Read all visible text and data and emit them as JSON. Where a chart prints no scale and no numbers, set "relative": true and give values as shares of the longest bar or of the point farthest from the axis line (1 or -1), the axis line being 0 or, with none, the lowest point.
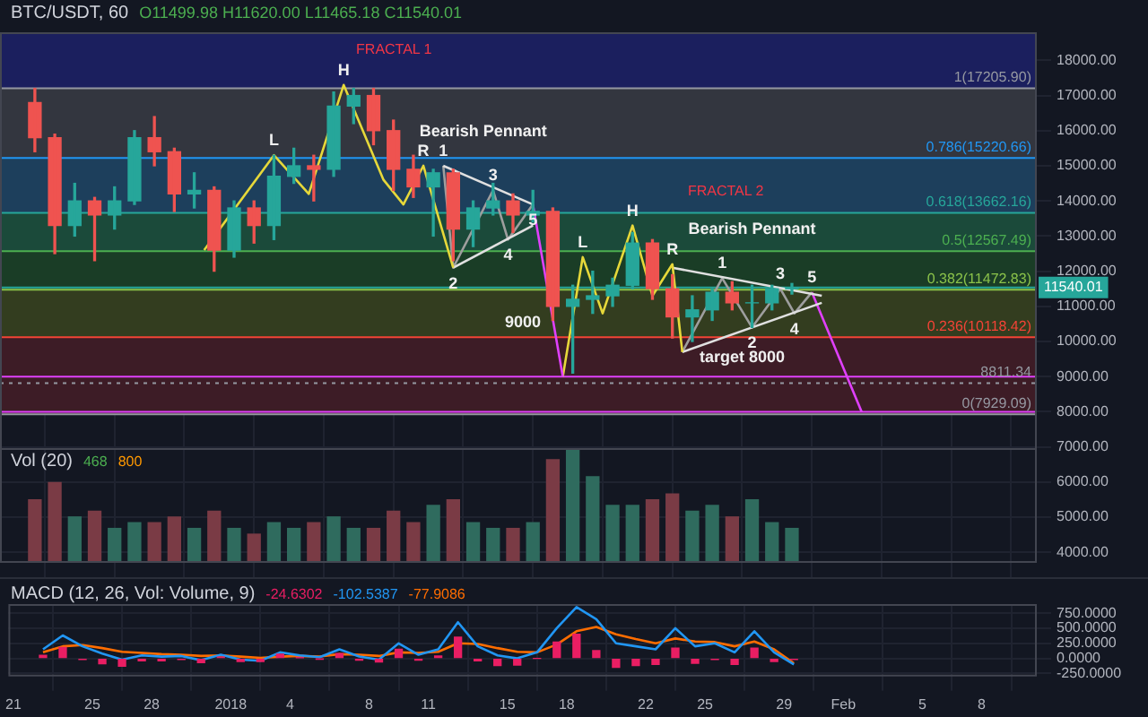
{
  "chart_data": [
    {
      "type": "candlestick",
      "title": "BTC/USDT, 60",
      "subtitle": "O11499.98 H11620.00 L11465.18 C11540.01",
      "x": [
        "2017-12-22T12:00",
        "2017-12-23T12:00",
        "2017-12-24T12:00",
        "2017-12-25T12:00",
        "2017-12-26T12:00",
        "2017-12-27T12:00",
        "2017-12-28T12:00",
        "2017-12-29T12:00",
        "2017-12-30T12:00",
        "2017-12-31T12:00",
        "2018-01-01T12:00",
        "2018-01-02T12:00",
        "2018-01-03T12:00",
        "2018-01-04T12:00",
        "2018-01-05T12:00",
        "2018-01-06T12:00",
        "2018-01-07T12:00",
        "2018-01-08T12:00",
        "2018-01-09T12:00",
        "2018-01-10T12:00",
        "2018-01-11T12:00",
        "2018-01-12T12:00",
        "2018-01-13T12:00",
        "2018-01-14T12:00",
        "2018-01-15T12:00",
        "2018-01-16T12:00",
        "2018-01-17T12:00",
        "2018-01-18T12:00",
        "2018-01-19T12:00",
        "2018-01-20T12:00",
        "2018-01-21T12:00",
        "2018-01-22T12:00",
        "2018-01-23T12:00",
        "2018-01-24T12:00",
        "2018-01-25T12:00",
        "2018-01-26T12:00",
        "2018-01-27T12:00",
        "2018-01-28T12:00",
        "2018-01-29T12:00"
      ],
      "ohlc": [
        [
          16800,
          17200,
          15400,
          15800
        ],
        [
          15800,
          15900,
          12500,
          13300
        ],
        [
          13300,
          14500,
          13000,
          14000
        ],
        [
          14000,
          14100,
          12300,
          13600
        ],
        [
          13600,
          14400,
          13200,
          14000
        ],
        [
          14000,
          16000,
          13900,
          15800
        ],
        [
          15800,
          16400,
          15000,
          15400
        ],
        [
          15400,
          15500,
          13700,
          14200
        ],
        [
          14200,
          14800,
          13800,
          14300
        ],
        [
          14300,
          14400,
          12000,
          12600
        ],
        [
          12600,
          14000,
          12400,
          13800
        ],
        [
          13800,
          14000,
          12800,
          13300
        ],
        [
          13300,
          15300,
          12900,
          14700
        ],
        [
          14700,
          15500,
          14500,
          15000
        ],
        [
          15000,
          15300,
          14000,
          14900
        ],
        [
          14900,
          17100,
          14700,
          16700
        ],
        [
          16700,
          17200,
          16200,
          17000
        ],
        [
          17000,
          17200,
          15600,
          16000
        ],
        [
          16000,
          16300,
          14300,
          14900
        ],
        [
          14900,
          15300,
          14100,
          14400
        ],
        [
          14400,
          14900,
          13000,
          14800
        ],
        [
          14800,
          14900,
          12300,
          13200
        ],
        [
          13200,
          14000,
          12700,
          13800
        ],
        [
          13800,
          14500,
          13600,
          14000
        ],
        [
          14000,
          14200,
          13100,
          13600
        ],
        [
          13600,
          14300,
          13400,
          13700
        ],
        [
          13700,
          13800,
          10600,
          11000
        ],
        [
          11000,
          11600,
          9100,
          11200
        ],
        [
          11200,
          12000,
          10800,
          11300
        ],
        [
          11300,
          11800,
          11000,
          11600
        ],
        [
          11600,
          13100,
          11500,
          12800
        ],
        [
          12800,
          12900,
          11200,
          11500
        ],
        [
          11500,
          11900,
          10100,
          10700
        ],
        [
          10700,
          11300,
          10000,
          10900
        ],
        [
          10900,
          11500,
          10600,
          11400
        ],
        [
          11400,
          11700,
          10900,
          11100
        ],
        [
          11100,
          11600,
          10400,
          11100
        ],
        [
          11100,
          11600,
          10900,
          11500
        ],
        [
          11500,
          11650,
          11350,
          11540
        ]
      ],
      "colors": [
        "#ef5350",
        "#ef5350",
        "#26a69a",
        "#ef5350",
        "#26a69a",
        "#26a69a",
        "#ef5350",
        "#ef5350",
        "#26a69a",
        "#ef5350",
        "#26a69a",
        "#ef5350",
        "#26a69a",
        "#26a69a",
        "#ef5350",
        "#26a69a",
        "#26a69a",
        "#ef5350",
        "#ef5350",
        "#ef5350",
        "#26a69a",
        "#ef5350",
        "#26a69a",
        "#26a69a",
        "#ef5350",
        "#26a69a",
        "#ef5350",
        "#26a69a",
        "#26a69a",
        "#26a69a",
        "#26a69a",
        "#ef5350",
        "#ef5350",
        "#26a69a",
        "#26a69a",
        "#ef5350",
        "#26a69a",
        "#26a69a",
        "#26a69a"
      ],
      "series": [
        {
          "type": "line",
          "color": "#e6d83a",
          "x": [
            "2017-12-31T00:00",
            "2018-01-03T12:00",
            "2018-01-05T06:00",
            "2018-01-07T00:00",
            "2018-01-09T00:00",
            "2018-01-10T00:00",
            "2018-01-11T00:00",
            "2018-01-12T12:00"
          ],
          "values": [
            12600,
            15300,
            14200,
            17300,
            14600,
            13900,
            15000,
            12100
          ]
        },
        {
          "type": "line",
          "color": "#e040fb",
          "x": [
            "2018-01-16T12:00",
            "2018-01-18T00:00"
          ],
          "values": [
            13900,
            9000
          ]
        },
        {
          "type": "line",
          "color": "#e0e0e0",
          "x": [
            "2018-01-12T00:00",
            "2018-01-16T12:00"
          ],
          "values": [
            15000,
            13900
          ]
        },
        {
          "type": "line",
          "color": "#e0e0e0",
          "x": [
            "2018-01-12T12:00",
            "2018-01-16T12:00"
          ],
          "values": [
            12100,
            13300
          ]
        },
        {
          "type": "line",
          "color": "#9e9e9e",
          "x": [
            "2018-01-12T00:00",
            "2018-01-12T12:00",
            "2018-01-14T12:00",
            "2018-01-15T06:00",
            "2018-01-16T12:00"
          ],
          "values": [
            15000,
            12100,
            14300,
            12900,
            13900
          ]
        },
        {
          "type": "line",
          "color": "#e6d83a",
          "x": [
            "2018-01-18T00:00",
            "2018-01-19T00:00",
            "2018-01-20T00:00",
            "2018-01-21T12:00",
            "2018-01-22T12:00",
            "2018-01-23T12:00",
            "2018-01-24T00:00"
          ],
          "values": [
            9000,
            12400,
            10800,
            13300,
            11300,
            12200,
            9700
          ]
        },
        {
          "type": "line",
          "color": "#e0e0e0",
          "x": [
            "2018-01-23T12:00",
            "2018-01-31T00:00"
          ],
          "values": [
            12100,
            11300
          ]
        },
        {
          "type": "line",
          "color": "#e0e0e0",
          "x": [
            "2018-01-24T00:00",
            "2018-01-31T00:00"
          ],
          "values": [
            9700,
            11100
          ]
        },
        {
          "type": "line",
          "color": "#9e9e9e",
          "x": [
            "2018-01-24T00:00",
            "2018-01-26T00:00",
            "2018-01-27T12:00",
            "2018-01-28T22:00",
            "2018-01-29T15:00",
            "2018-01-30T12:00"
          ],
          "values": [
            9700,
            11800,
            10400,
            11500,
            10800,
            11400
          ]
        },
        {
          "type": "line",
          "color": "#e040fb",
          "x": [
            "2018-01-30T12:00",
            "2018-02-02T00:00"
          ],
          "values": [
            11400,
            8000
          ]
        }
      ],
      "bands": [
        {
          "axis": "y",
          "from": 17205.9,
          "to": 18800,
          "color": "#1b1f5e"
        },
        {
          "axis": "y",
          "from": 15220.66,
          "to": 17205.9,
          "color": "#33363f"
        },
        {
          "axis": "y",
          "from": 13662.16,
          "to": 15220.66,
          "color": "#1d3f5c"
        },
        {
          "axis": "y",
          "from": 12567.49,
          "to": 13662.16,
          "color": "#1b4a3a"
        },
        {
          "axis": "y",
          "from": 11472.83,
          "to": 12567.49,
          "color": "#1a3d26"
        },
        {
          "axis": "y",
          "from": 10118.42,
          "to": 11472.83,
          "color": "#333d1f"
        },
        {
          "axis": "y",
          "from": 7929.09,
          "to": 10118.42,
          "color": "#3d1c26"
        }
      ],
      "ref_lines": [
        {
          "axis": "y",
          "value": 17205.9,
          "label": "1(17205.90)",
          "color": "#9598a1"
        },
        {
          "axis": "y",
          "value": 15220.66,
          "label": "0.786(15220.66)",
          "color": "#2196f3"
        },
        {
          "axis": "y",
          "value": 13662.16,
          "label": "0.618(13662.16)",
          "color": "#26a69a"
        },
        {
          "axis": "y",
          "value": 12567.49,
          "label": "0.5(12567.49)",
          "color": "#4caf50"
        },
        {
          "axis": "y",
          "value": 11472.83,
          "label": "0.382(11472.83)",
          "color": "#8bc34a"
        },
        {
          "axis": "y",
          "value": 10118.42,
          "label": "0.236(10118.42)",
          "color": "#f44336"
        },
        {
          "axis": "y",
          "value": 7929.09,
          "label": "0(7929.09)",
          "color": "#9598a1"
        },
        {
          "axis": "y",
          "value": 11540.01,
          "label": "11540.01",
          "color": "#26a69a"
        },
        {
          "axis": "y",
          "value": 8811.34,
          "label": "8811.34",
          "color": "#9598a1",
          "line_style": "dotted"
        },
        {
          "axis": "y",
          "value": 9000,
          "color": "#e040fb"
        },
        {
          "axis": "y",
          "value": 8000,
          "color": "#e040fb"
        }
      ],
      "annotations": [
        "FRACTAL 1",
        "FRACTAL 2",
        {
          "text": "L",
          "x": "2018-01-03T12:00",
          "y": 15300
        },
        {
          "text": "H",
          "x": "2018-01-07T00:00",
          "y": 17300
        },
        {
          "text": "R",
          "x": "2018-01-11T00:00",
          "y": 15000
        },
        {
          "text": "Bearish Pennant",
          "x": "2018-01-14T00:00",
          "y": 14450
        },
        {
          "text": "1",
          "x": "2018-01-12T00:00",
          "y": 15000
        },
        {
          "text": "2",
          "x": "2018-01-12T12:00",
          "y": 12100
        },
        {
          "text": "3",
          "x": "2018-01-14T12:00",
          "y": 14300
        },
        {
          "text": "4",
          "x": "2018-01-15T06:00",
          "y": 12900
        },
        {
          "text": "5",
          "x": "2018-01-16T12:00",
          "y": 13900
        },
        {
          "text": "9000",
          "x": "2018-01-16T00:00",
          "y": 9000
        },
        {
          "text": "L",
          "x": "2018-01-19T00:00",
          "y": 12400
        },
        {
          "text": "H",
          "x": "2018-01-21T12:00",
          "y": 13300
        },
        {
          "text": "R",
          "x": "2018-01-23T12:00",
          "y": 12200
        },
        {
          "text": "Bearish Pennant",
          "x": "2018-01-27T12:00",
          "y": 11670
        },
        {
          "text": "1",
          "x": "2018-01-26T00:00",
          "y": 11800
        },
        {
          "text": "2",
          "x": "2018-01-27T12:00",
          "y": 10400
        },
        {
          "text": "3",
          "x": "2018-01-28T22:00",
          "y": 11500
        },
        {
          "text": "4",
          "x": "2018-01-29T15:00",
          "y": 10800
        },
        {
          "text": "5",
          "x": "2018-01-30T12:00",
          "y": 11400
        },
        {
          "text": "target 8000",
          "x": "2018-01-27T00:00",
          "y": 8000
        }
      ],
      "xlim": [
        "2017-12-20T18:00",
        "2018-02-10T19:00"
      ],
      "xticks": [
        {
          "value": "2017-12-21",
          "label": null
        },
        {
          "value": "2017-12-25",
          "label": null
        },
        {
          "value": "2017-12-28",
          "label": null
        },
        {
          "value": "2018-01-01",
          "label": null
        },
        {
          "value": "2018-01-04",
          "label": null
        },
        {
          "value": "2018-01-08",
          "label": null
        },
        {
          "value": "2018-01-11",
          "label": null
        },
        {
          "value": "2018-01-15",
          "label": null
        },
        {
          "value": "2018-01-18",
          "label": null
        },
        {
          "value": "2018-01-22",
          "label": null
        },
        {
          "value": "2018-01-25",
          "label": null
        },
        {
          "value": "2018-01-29",
          "label": null
        },
        {
          "value": "2018-02-01",
          "label": null
        },
        {
          "value": "2018-02-05",
          "label": null
        },
        {
          "value": "2018-02-08",
          "label": null
        }
      ],
      "ylim": [
        3700,
        18800
      ],
      "yticks": [
        {
          "value": 4000,
          "label": "4000.00"
        },
        {
          "value": 5000,
          "label": "5000.00"
        },
        {
          "value": 6000,
          "label": "6000.00"
        },
        {
          "value": 7000,
          "label": "7000.00"
        },
        {
          "value": 8000,
          "label": "8000.00"
        },
        {
          "value": 9000,
          "label": "9000.00"
        },
        {
          "value": 10000,
          "label": "10000.00"
        },
        {
          "value": 11000,
          "label": "11000.00"
        },
        {
          "value": 12000,
          "label": "12000.00"
        },
        {
          "value": 13000,
          "label": "13000.00"
        },
        {
          "value": 14000,
          "label": "14000.00"
        },
        {
          "value": 15000,
          "label": "15000.00"
        },
        {
          "value": 16000,
          "label": "16000.00"
        },
        {
          "value": 17000,
          "label": "17000.00"
        },
        {
          "value": 18000,
          "label": "18000.00"
        }
      ],
      "tick_labels": "y",
      "grid": true,
      "legend": false
    },
    {
      "type": "bar",
      "title": "Vol (20)",
      "annotations": [
        "468",
        "800"
      ],
      "relative": true,
      "x": [
        "2017-12-22T12:00",
        "2017-12-23T12:00",
        "2017-12-24T12:00",
        "2017-12-25T12:00",
        "2017-12-26T12:00",
        "2017-12-27T12:00",
        "2017-12-28T12:00",
        "2017-12-29T12:00",
        "2017-12-30T12:00",
        "2017-12-31T12:00",
        "2018-01-01T12:00",
        "2018-01-02T12:00",
        "2018-01-03T12:00",
        "2018-01-04T12:00",
        "2018-01-05T12:00",
        "2018-01-06T12:00",
        "2018-01-07T12:00",
        "2018-01-08T12:00",
        "2018-01-09T12:00",
        "2018-01-10T12:00",
        "2018-01-11T12:00",
        "2018-01-12T12:00",
        "2018-01-13T12:00",
        "2018-01-14T12:00",
        "2018-01-15T12:00",
        "2018-01-16T12:00",
        "2018-01-17T12:00",
        "2018-01-18T12:00",
        "2018-01-19T12:00",
        "2018-01-20T12:00",
        "2018-01-21T12:00",
        "2018-01-22T12:00",
        "2018-01-23T12:00",
        "2018-01-24T12:00",
        "2018-01-25T12:00",
        "2018-01-26T12:00",
        "2018-01-27T12:00",
        "2018-01-28T12:00",
        "2018-01-29T12:00"
      ],
      "values": [
        0.55,
        0.7,
        0.4,
        0.45,
        0.3,
        0.35,
        0.35,
        0.4,
        0.3,
        0.45,
        0.3,
        0.25,
        0.35,
        0.3,
        0.35,
        0.4,
        0.3,
        0.3,
        0.45,
        0.35,
        0.5,
        0.55,
        0.35,
        0.3,
        0.3,
        0.35,
        0.9,
        1,
        0.75,
        0.5,
        0.5,
        0.55,
        0.6,
        0.45,
        0.5,
        0.4,
        0.55,
        0.35,
        0.3
      ],
      "colors": [
        "#7a3b45",
        "#7a3b45",
        "#2f6b5e",
        "#7a3b45",
        "#2f6b5e",
        "#2f6b5e",
        "#7a3b45",
        "#7a3b45",
        "#2f6b5e",
        "#7a3b45",
        "#2f6b5e",
        "#7a3b45",
        "#2f6b5e",
        "#2f6b5e",
        "#7a3b45",
        "#2f6b5e",
        "#2f6b5e",
        "#7a3b45",
        "#7a3b45",
        "#7a3b45",
        "#2f6b5e",
        "#7a3b45",
        "#2f6b5e",
        "#2f6b5e",
        "#7a3b45",
        "#2f6b5e",
        "#7a3b45",
        "#2f6b5e",
        "#2f6b5e",
        "#2f6b5e",
        "#2f6b5e",
        "#7a3b45",
        "#7a3b45",
        "#2f6b5e",
        "#2f6b5e",
        "#7a3b45",
        "#2f6b5e",
        "#2f6b5e",
        "#2f6b5e"
      ],
      "xlim": [
        "2017-12-20T18:00",
        "2018-02-10T19:00"
      ],
      "tick_labels": false,
      "legend": false
    },
    {
      "type": "line",
      "title": "MACD (12, 26, Vol: Volume, 9)",
      "annotations": [
        "-24.6302",
        "-102.5387",
        "-77.9086"
      ],
      "x": [
        "2017-12-22T12:00",
        "2017-12-23T12:00",
        "2017-12-24T12:00",
        "2017-12-25T12:00",
        "2017-12-26T12:00",
        "2017-12-27T12:00",
        "2017-12-28T12:00",
        "2017-12-29T12:00",
        "2017-12-30T12:00",
        "2017-12-31T12:00",
        "2018-01-01T12:00",
        "2018-01-02T12:00",
        "2018-01-03T12:00",
        "2018-01-04T12:00",
        "2018-01-05T12:00",
        "2018-01-06T12:00",
        "2018-01-07T12:00",
        "2018-01-08T12:00",
        "2018-01-09T12:00",
        "2018-01-10T12:00",
        "2018-01-11T12:00",
        "2018-01-12T12:00",
        "2018-01-13T12:00",
        "2018-01-14T12:00",
        "2018-01-15T12:00",
        "2018-01-16T12:00",
        "2018-01-17T12:00",
        "2018-01-18T12:00",
        "2018-01-19T12:00",
        "2018-01-20T12:00",
        "2018-01-21T12:00",
        "2018-01-22T12:00",
        "2018-01-23T12:00",
        "2018-01-24T12:00",
        "2018-01-25T12:00",
        "2018-01-26T12:00",
        "2018-01-27T12:00",
        "2018-01-28T12:00",
        "2018-01-29T12:00"
      ],
      "series": [
        {
          "type": "bar",
          "color": "#e91e63",
          "values": [
            50,
            180,
            -20,
            -90,
            -130,
            -40,
            -40,
            -20,
            -70,
            20,
            -50,
            -50,
            70,
            10,
            -10,
            80,
            -30,
            -60,
            150,
            -30,
            40,
            350,
            -40,
            -120,
            -110,
            0,
            270,
            400,
            130,
            -150,
            -120,
            -100,
            170,
            -80,
            -20,
            -100,
            170,
            -50,
            -20
          ]
        },
        {
          "type": "line",
          "color": "#2196f3",
          "values": [
            150,
            380,
            200,
            80,
            -20,
            50,
            30,
            40,
            -30,
            60,
            -20,
            -40,
            100,
            50,
            20,
            150,
            30,
            -20,
            250,
            60,
            150,
            600,
            200,
            50,
            0,
            100,
            500,
            850,
            650,
            250,
            200,
            150,
            500,
            200,
            250,
            100,
            450,
            100,
            -100
          ]
        },
        {
          "type": "line",
          "color": "#ff6d00",
          "values": [
            100,
            200,
            220,
            170,
            110,
            90,
            70,
            60,
            40,
            50,
            30,
            10,
            30,
            40,
            30,
            70,
            60,
            40,
            100,
            90,
            110,
            250,
            240,
            170,
            110,
            100,
            230,
            450,
            520,
            400,
            320,
            250,
            330,
            280,
            270,
            200,
            280,
            150,
            -80
          ]
        }
      ],
      "xlim": [
        "2017-12-20T18:00",
        "2018-02-10T19:00"
      ],
      "xticks": [
        {
          "value": "2017-12-21",
          "label": "21"
        },
        {
          "value": "2017-12-25",
          "label": "25"
        },
        {
          "value": "2017-12-28",
          "label": "28"
        },
        {
          "value": "2018-01-01",
          "label": "2018"
        },
        {
          "value": "2018-01-04",
          "label": "4"
        },
        {
          "value": "2018-01-08",
          "label": "8"
        },
        {
          "value": "2018-01-11",
          "label": "11"
        },
        {
          "value": "2018-01-15",
          "label": "15"
        },
        {
          "value": "2018-01-18",
          "label": "18"
        },
        {
          "value": "2018-01-22",
          "label": "22"
        },
        {
          "value": "2018-01-25",
          "label": "25"
        },
        {
          "value": "2018-01-29",
          "label": "29"
        },
        {
          "value": "2018-02-01",
          "label": "Feb"
        },
        {
          "value": "2018-02-05",
          "label": "5"
        },
        {
          "value": "2018-02-08",
          "label": "8"
        }
      ],
      "ylim": [
        -300,
        900
      ],
      "yticks": [
        {
          "value": -250,
          "label": "-250.0000"
        },
        {
          "value": 0,
          "label": "0.0000"
        },
        {
          "value": 250,
          "label": "250.0000"
        },
        {
          "value": 500,
          "label": "500.0000"
        },
        {
          "value": 750,
          "label": "750.0000"
        }
      ],
      "grid": true,
      "legend": false
    }
  ]
}
